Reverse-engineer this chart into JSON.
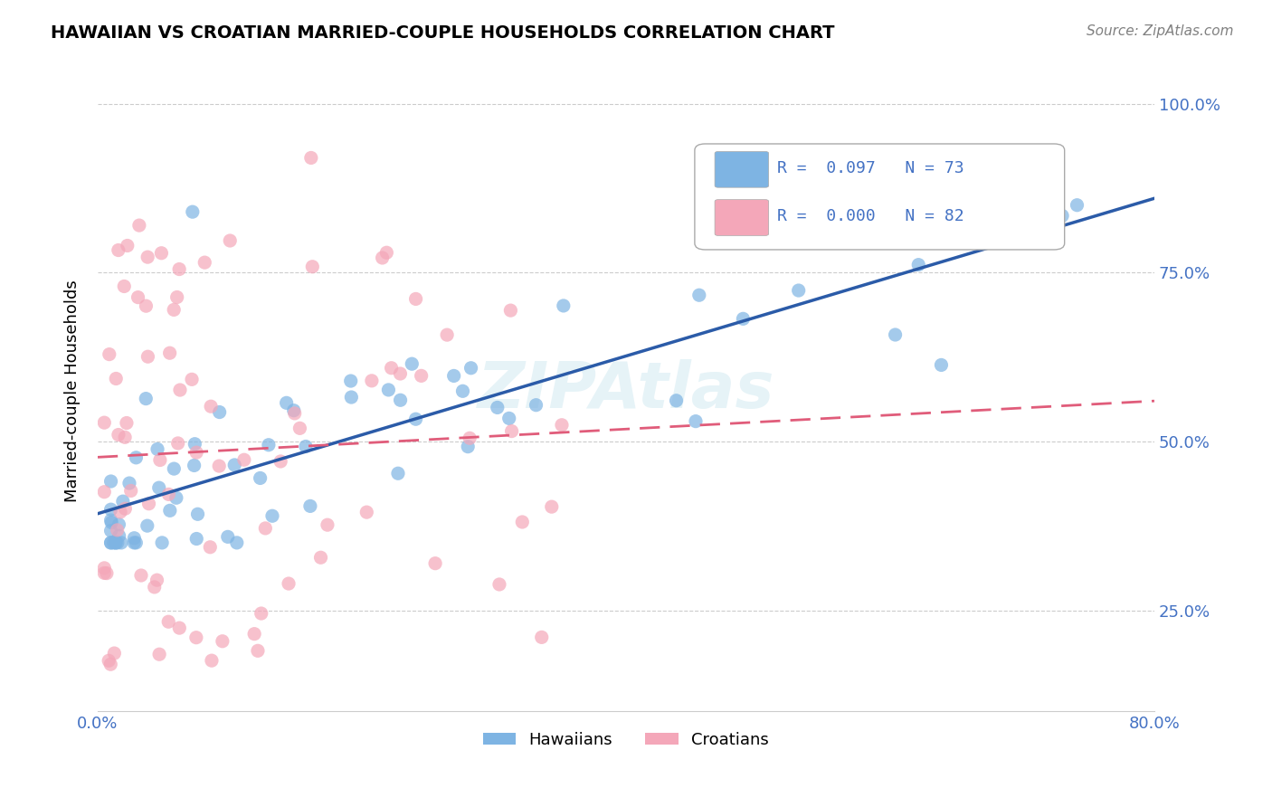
{
  "title": "HAWAIIAN VS CROATIAN MARRIED-COUPLE HOUSEHOLDS CORRELATION CHART",
  "source": "Source: ZipAtlas.com",
  "ylabel": "Married-couple Households",
  "xlim": [
    0.0,
    0.8
  ],
  "ylim": [
    0.1,
    1.05
  ],
  "hawaiian_R": "0.097",
  "hawaiian_N": "73",
  "croatian_R": "0.000",
  "croatian_N": "82",
  "hawaiian_color": "#7EB4E3",
  "croatian_color": "#F4A7B9",
  "hawaiian_line_color": "#2B5BA8",
  "croatian_line_color": "#E05C7A",
  "legend_label_1": "Hawaiians",
  "legend_label_2": "Croatians",
  "background_color": "#FFFFFF",
  "grid_color": "#CCCCCC",
  "watermark": "ZIPAtlas",
  "y_ticks": [
    0.25,
    0.5,
    0.75,
    1.0
  ],
  "y_tick_labels": [
    "25.0%",
    "50.0%",
    "75.0%",
    "100.0%"
  ],
  "x_ticks": [
    0.0,
    0.8
  ],
  "x_tick_labels": [
    "0.0%",
    "80.0%"
  ]
}
